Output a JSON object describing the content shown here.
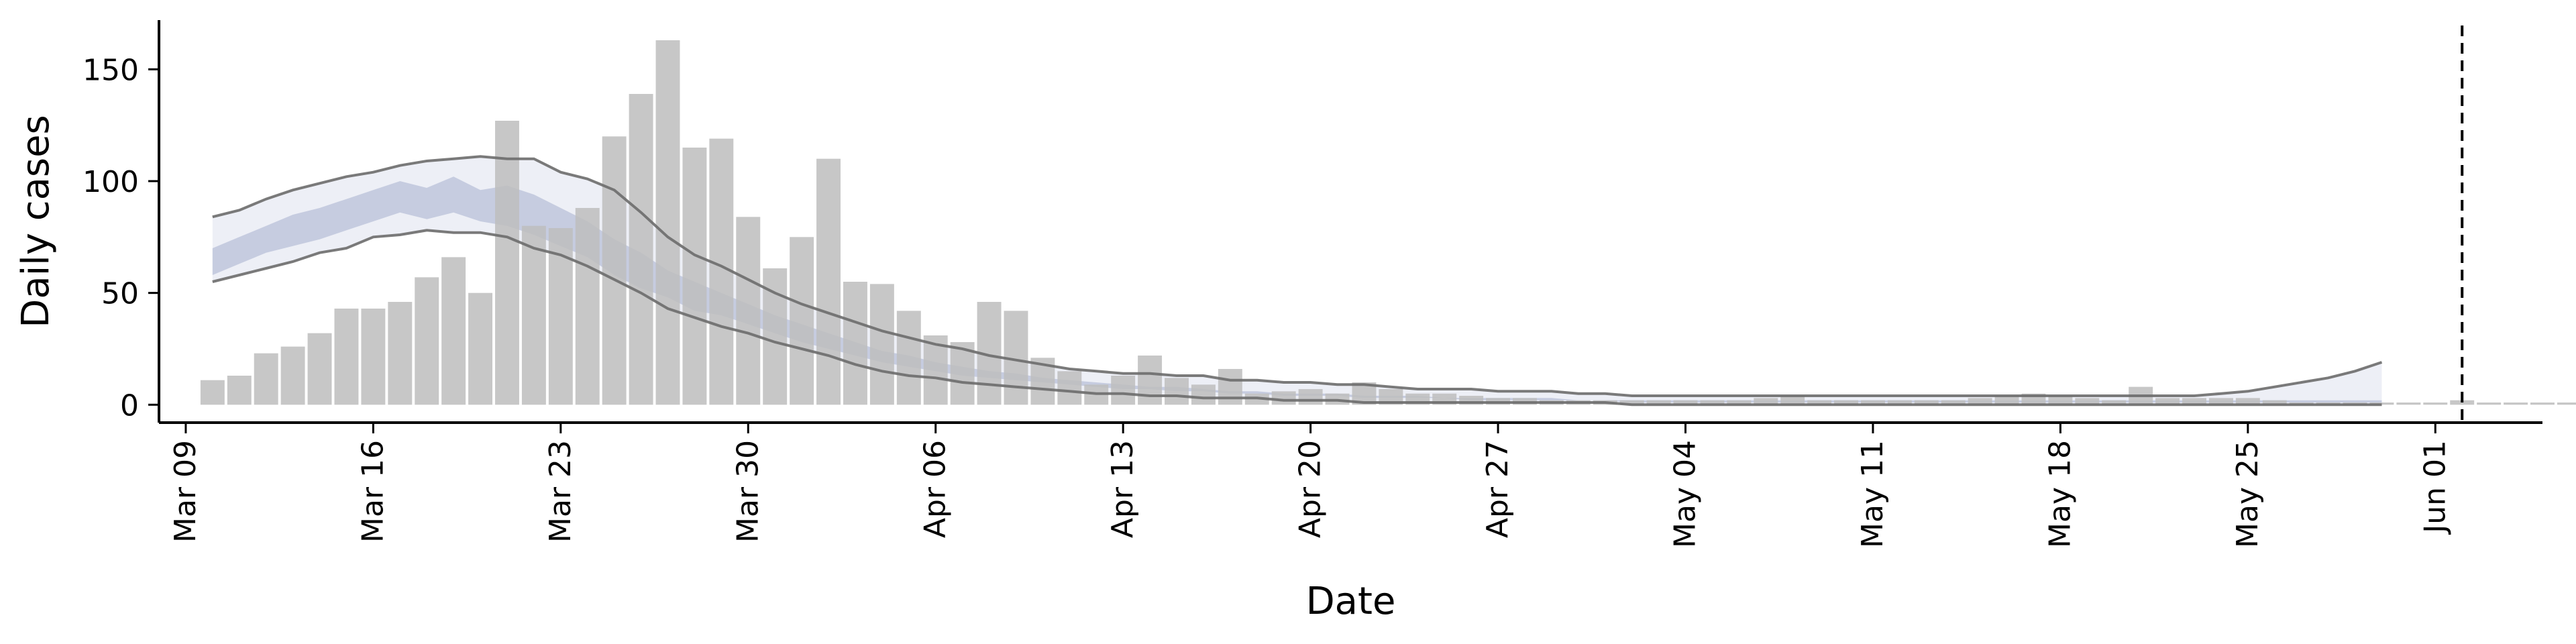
{
  "chart_data": {
    "type": "bar",
    "title": "",
    "xlabel": "Date",
    "ylabel": "Daily cases",
    "ylim": [
      -8,
      172
    ],
    "yticks": [
      0,
      50,
      100,
      150
    ],
    "x_start": "2020-03-08",
    "x_end": "2020-06-05",
    "x_ticks": [
      {
        "date": "2020-03-09",
        "label": "Mar 09"
      },
      {
        "date": "2020-03-16",
        "label": "Mar 16"
      },
      {
        "date": "2020-03-23",
        "label": "Mar 23"
      },
      {
        "date": "2020-03-30",
        "label": "Mar 30"
      },
      {
        "date": "2020-04-06",
        "label": "Apr 06"
      },
      {
        "date": "2020-04-13",
        "label": "Apr 13"
      },
      {
        "date": "2020-04-20",
        "label": "Apr 20"
      },
      {
        "date": "2020-04-27",
        "label": "Apr 27"
      },
      {
        "date": "2020-05-04",
        "label": "May 04"
      },
      {
        "date": "2020-05-11",
        "label": "May 11"
      },
      {
        "date": "2020-05-18",
        "label": "May 18"
      },
      {
        "date": "2020-05-25",
        "label": "May 25"
      },
      {
        "date": "2020-06-01",
        "label": "Jun 01"
      }
    ],
    "vline_date": "2020-06-02",
    "colors": {
      "bars": "#bdbdbd",
      "outer_band": "#e6e8f2",
      "inner_band": "#b8c0d8",
      "band_edges": "#6b6b6b",
      "vline": "#000000"
    },
    "bar_series": {
      "name": "Daily cases",
      "start_date": "2020-03-10",
      "values": [
        11,
        13,
        23,
        26,
        32,
        43,
        43,
        46,
        57,
        66,
        50,
        127,
        80,
        79,
        88,
        120,
        139,
        163,
        115,
        119,
        84,
        61,
        75,
        110,
        55,
        54,
        42,
        31,
        28,
        46,
        42,
        21,
        15,
        9,
        13,
        22,
        12,
        9,
        16,
        5,
        6,
        7,
        5,
        10,
        7,
        5,
        5,
        4,
        3,
        3,
        2,
        2,
        2,
        2,
        2,
        2,
        2,
        2,
        3,
        4,
        2,
        2,
        2,
        2,
        2,
        2,
        3,
        4,
        5,
        4,
        3,
        2,
        8,
        3,
        3,
        3,
        3,
        2,
        1,
        1,
        1,
        1,
        1,
        1,
        2,
        1,
        1,
        1,
        1
      ]
    },
    "forecast_band": {
      "start_date": "2020-03-10",
      "outer_upper": [
        84,
        87,
        92,
        96,
        99,
        102,
        104,
        107,
        109,
        110,
        111,
        110,
        110,
        104,
        101,
        96,
        86,
        75,
        67,
        62,
        56,
        50,
        45,
        41,
        37,
        33,
        30,
        27,
        25,
        22,
        20,
        18,
        16,
        15,
        14,
        14,
        13,
        13,
        11,
        11,
        10,
        10,
        9,
        9,
        8,
        7,
        7,
        7,
        6,
        6,
        6,
        5,
        5,
        4,
        4,
        4,
        4,
        4,
        4,
        4,
        4,
        4,
        4,
        4,
        4,
        4,
        4,
        4,
        4,
        4,
        4,
        4,
        4,
        4,
        4,
        5,
        6,
        8,
        10,
        12,
        15,
        19
      ],
      "inner_upper": [
        70,
        75,
        80,
        85,
        88,
        92,
        96,
        100,
        97,
        102,
        96,
        98,
        94,
        88,
        82,
        74,
        68,
        60,
        55,
        50,
        45,
        40,
        36,
        32,
        28,
        24,
        22,
        19,
        17,
        15,
        14,
        12,
        11,
        10,
        9,
        8,
        8,
        7,
        6,
        6,
        5,
        5,
        5,
        4,
        4,
        4,
        3,
        3,
        3,
        3,
        3,
        2,
        2,
        2,
        2,
        2,
        2,
        2,
        2,
        2,
        2,
        2,
        2,
        2,
        2,
        2,
        2,
        2,
        2,
        2,
        2,
        2,
        2,
        2,
        2,
        2,
        2,
        2,
        2,
        2,
        2,
        2
      ],
      "inner_lower": [
        58,
        63,
        68,
        71,
        74,
        78,
        82,
        86,
        83,
        86,
        82,
        80,
        76,
        71,
        66,
        58,
        52,
        48,
        42,
        40,
        36,
        32,
        28,
        25,
        22,
        19,
        17,
        15,
        13,
        12,
        11,
        10,
        9,
        8,
        7,
        7,
        6,
        6,
        5,
        5,
        4,
        4,
        4,
        3,
        3,
        3,
        3,
        2,
        2,
        2,
        2,
        2,
        2,
        1,
        1,
        1,
        1,
        1,
        1,
        1,
        1,
        1,
        1,
        1,
        1,
        1,
        1,
        1,
        1,
        1,
        1,
        1,
        1,
        1,
        1,
        1,
        1,
        1,
        1,
        1,
        1,
        1
      ],
      "outer_lower": [
        55,
        58,
        61,
        64,
        68,
        70,
        75,
        76,
        78,
        77,
        77,
        75,
        70,
        67,
        62,
        56,
        50,
        43,
        39,
        35,
        32,
        28,
        25,
        22,
        18,
        15,
        13,
        12,
        10,
        9,
        8,
        7,
        6,
        5,
        5,
        4,
        4,
        3,
        3,
        3,
        2,
        2,
        2,
        1,
        1,
        1,
        1,
        1,
        1,
        1,
        1,
        1,
        1,
        0,
        0,
        0,
        0,
        0,
        0,
        0,
        0,
        0,
        0,
        0,
        0,
        0,
        0,
        0,
        0,
        0,
        0,
        0,
        0,
        0,
        0,
        0,
        0,
        0,
        0,
        0,
        0,
        0
      ]
    },
    "grid": false,
    "legend": "none"
  }
}
